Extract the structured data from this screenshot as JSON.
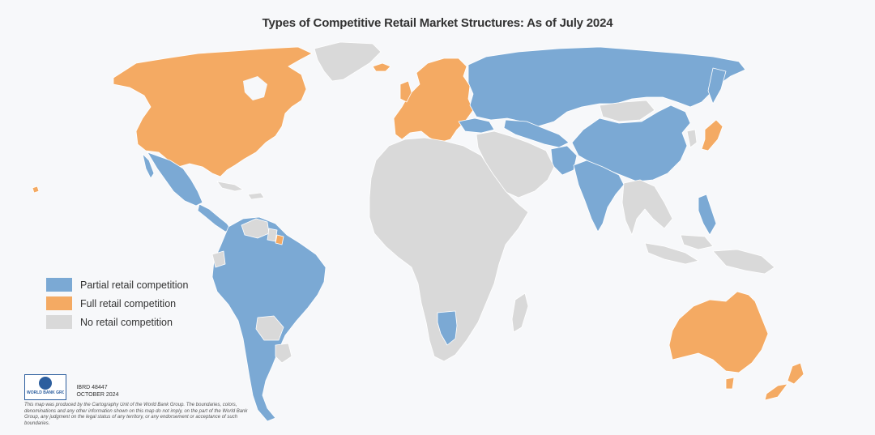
{
  "title": "Types of Competitive Retail Market Structures: As of July 2024",
  "legend": [
    {
      "label": "Partial retail competition",
      "color": "#7ba9d4"
    },
    {
      "label": "Full retail competition",
      "color": "#f4aa63"
    },
    {
      "label": "No retail competition",
      "color": "#d9d9d9"
    }
  ],
  "colors": {
    "partial": "#7ba9d4",
    "full": "#f4aa63",
    "none": "#d9d9d9",
    "border": "#ffffff",
    "ocean": "#f7f8fa"
  },
  "credits": {
    "logo_text": "WORLD BANK GROUP",
    "map_id": "IBRD 48447",
    "date": "OCTOBER 2024",
    "disclaimer": "This map was produced by the Cartography Unit of the World Bank Group. The boundaries, colors, denominations and any other information shown on this map do not imply, on the part of the World Bank Group, any judgment on the legal status of any territory, or any endorsement or acceptance of such boundaries."
  },
  "regions": [
    {
      "name": "north-america",
      "status": "full"
    },
    {
      "name": "greenland",
      "status": "none"
    },
    {
      "name": "mexico",
      "status": "partial"
    },
    {
      "name": "central-america",
      "status": "partial"
    },
    {
      "name": "caribbean",
      "status": "none"
    },
    {
      "name": "south-america",
      "status": "partial"
    },
    {
      "name": "venezuela",
      "status": "none"
    },
    {
      "name": "guyanas",
      "status": "none"
    },
    {
      "name": "french-guiana",
      "status": "full"
    },
    {
      "name": "bolivia",
      "status": "none"
    },
    {
      "name": "paraguay",
      "status": "none"
    },
    {
      "name": "ecuador",
      "status": "none"
    },
    {
      "name": "europe",
      "status": "full"
    },
    {
      "name": "iceland",
      "status": "full"
    },
    {
      "name": "turkey",
      "status": "partial"
    },
    {
      "name": "russia",
      "status": "partial"
    },
    {
      "name": "central-asia",
      "status": "partial"
    },
    {
      "name": "mongolia",
      "status": "none"
    },
    {
      "name": "china",
      "status": "partial"
    },
    {
      "name": "japan",
      "status": "full"
    },
    {
      "name": "korea",
      "status": "none"
    },
    {
      "name": "india",
      "status": "partial"
    },
    {
      "name": "pakistan",
      "status": "partial"
    },
    {
      "name": "middle-east",
      "status": "none"
    },
    {
      "name": "africa",
      "status": "none"
    },
    {
      "name": "namibia",
      "status": "partial"
    },
    {
      "name": "madagascar",
      "status": "none"
    },
    {
      "name": "southeast-asia",
      "status": "none"
    },
    {
      "name": "philippines",
      "status": "partial"
    },
    {
      "name": "indonesia",
      "status": "none"
    },
    {
      "name": "australia",
      "status": "full"
    },
    {
      "name": "new-zealand",
      "status": "full"
    },
    {
      "name": "hawaii",
      "status": "full"
    }
  ]
}
